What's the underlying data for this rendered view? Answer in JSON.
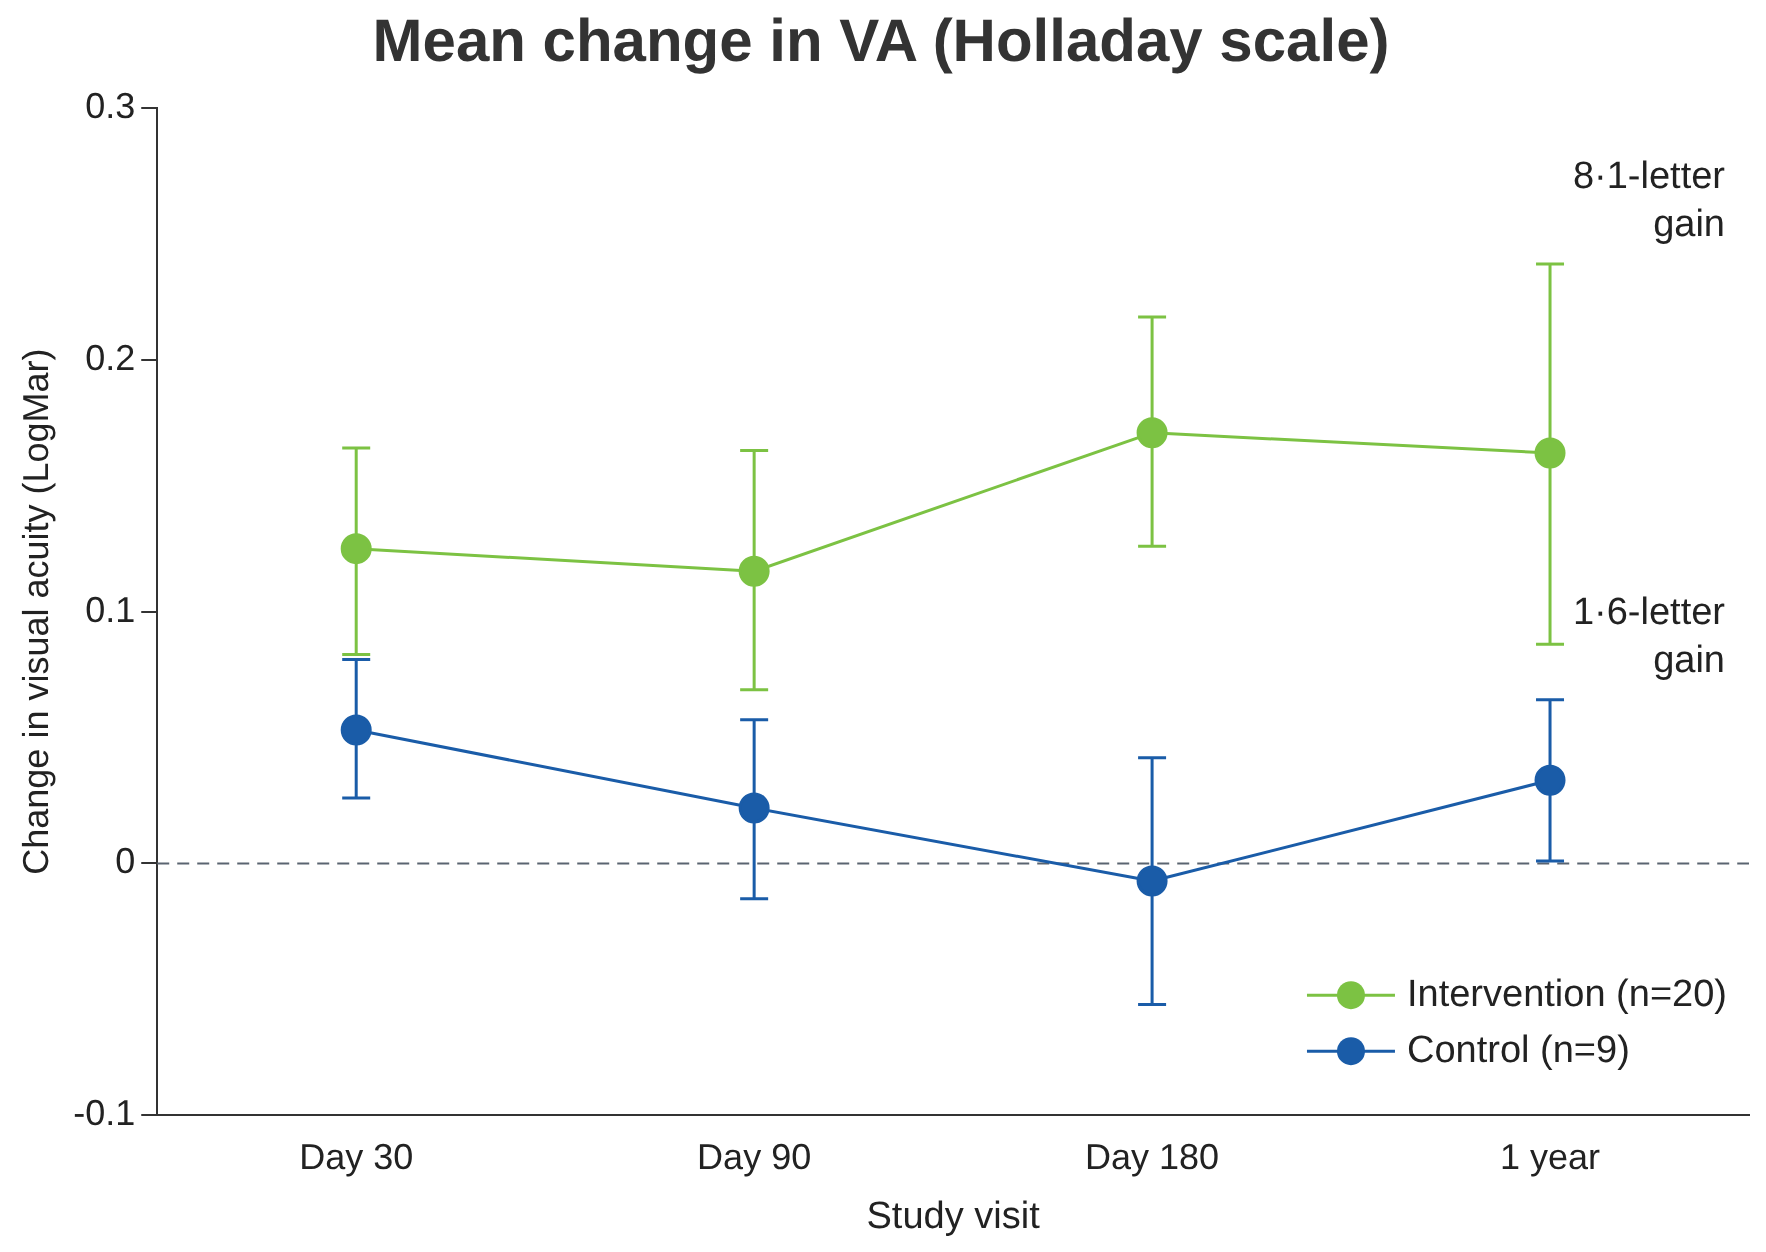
{
  "chart_data": {
    "type": "line",
    "title": "Mean change in VA (Holladay scale)",
    "xlabel": "Study visit",
    "ylabel": "Change in visual acuity (LogMar)",
    "categories": [
      "Day 30",
      "Day 90",
      "Day 180",
      "1 year"
    ],
    "ylim": [
      -0.1,
      0.3
    ],
    "yticks": [
      -0.1,
      0,
      0.1,
      0.2,
      0.3
    ],
    "series": [
      {
        "name": "Intervention (n=20)",
        "color": "#7cc243",
        "values": [
          0.125,
          0.116,
          0.171,
          0.163
        ],
        "errors": [
          [
            0.083,
            0.165
          ],
          [
            0.069,
            0.164
          ],
          [
            0.126,
            0.217
          ],
          [
            0.087,
            0.238
          ]
        ]
      },
      {
        "name": "Control (n=9)",
        "color": "#1a5ca8",
        "values": [
          0.053,
          0.022,
          -0.007,
          0.033
        ],
        "errors": [
          [
            0.026,
            0.081
          ],
          [
            -0.014,
            0.057
          ],
          [
            -0.056,
            0.042
          ],
          [
            0.001,
            0.065
          ]
        ]
      }
    ],
    "ref_lines": [
      {
        "axis": "y",
        "value": 0,
        "color": "#5a6470",
        "line_style": "dashed"
      }
    ],
    "annotations": [
      "8·1-letter gain",
      "1·6-letter gain"
    ],
    "marker": "circle",
    "line_style": "solid",
    "grid": false,
    "legend": "bottom right"
  }
}
